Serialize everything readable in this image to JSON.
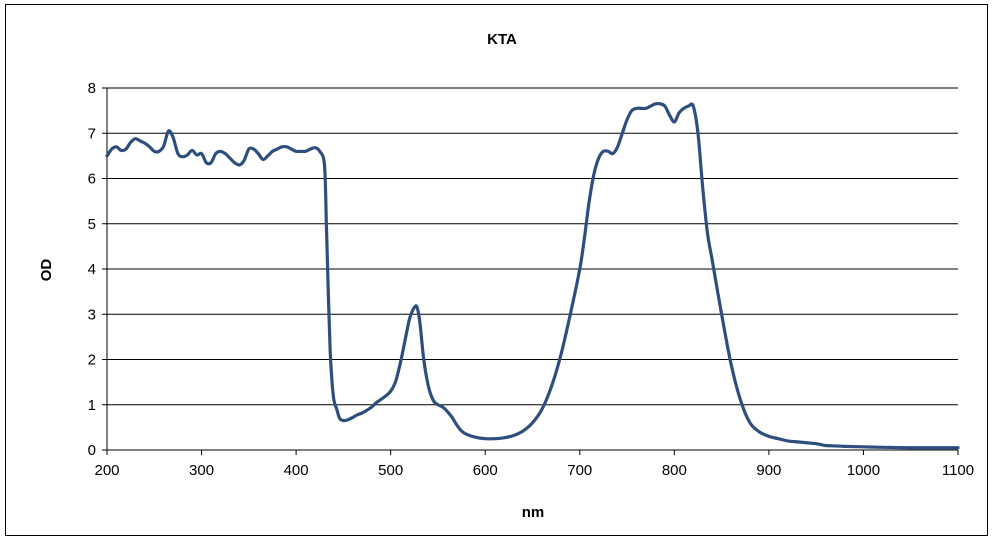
{
  "chart_data": {
    "type": "line",
    "title": "KTA",
    "xlabel": "nm",
    "ylabel": "OD",
    "xlim": [
      200,
      1100
    ],
    "ylim": [
      0,
      8
    ],
    "x_ticks": [
      "200",
      "300",
      "400",
      "500",
      "600",
      "700",
      "800",
      "900",
      "1000",
      "1100"
    ],
    "y_ticks": [
      "0",
      "1",
      "2",
      "3",
      "4",
      "5",
      "6",
      "7",
      "8"
    ],
    "grid": "horizontal",
    "legend": "none",
    "line_color": "#2e4f7e",
    "series": [
      {
        "x": [
          200,
          205,
          210,
          215,
          220,
          225,
          230,
          235,
          240,
          245,
          250,
          255,
          260,
          265,
          270,
          275,
          280,
          285,
          290,
          295,
          300,
          305,
          310,
          315,
          320,
          325,
          330,
          335,
          340,
          345,
          350,
          355,
          360,
          365,
          370,
          375,
          380,
          385,
          390,
          395,
          400,
          405,
          410,
          415,
          420,
          425,
          430,
          432,
          434,
          436,
          438,
          440,
          443,
          446,
          450,
          455,
          460,
          465,
          470,
          475,
          480,
          485,
          490,
          495,
          500,
          505,
          510,
          515,
          520,
          525,
          528,
          531,
          535,
          540,
          545,
          550,
          555,
          560,
          565,
          570,
          575,
          580,
          590,
          600,
          610,
          620,
          630,
          640,
          650,
          660,
          670,
          680,
          690,
          700,
          705,
          710,
          715,
          720,
          725,
          730,
          735,
          740,
          745,
          750,
          755,
          760,
          765,
          770,
          775,
          780,
          785,
          790,
          795,
          800,
          805,
          810,
          815,
          820,
          825,
          830,
          835,
          840,
          850,
          860,
          870,
          880,
          890,
          900,
          910,
          920,
          930,
          940,
          950,
          955,
          960,
          970,
          980,
          1000,
          1020,
          1050,
          1070,
          1100
        ],
        "y": [
          6.5,
          6.65,
          6.7,
          6.62,
          6.65,
          6.8,
          6.88,
          6.83,
          6.78,
          6.7,
          6.6,
          6.6,
          6.72,
          7.05,
          6.9,
          6.55,
          6.48,
          6.52,
          6.62,
          6.52,
          6.55,
          6.35,
          6.35,
          6.55,
          6.6,
          6.55,
          6.45,
          6.35,
          6.3,
          6.4,
          6.65,
          6.65,
          6.55,
          6.42,
          6.5,
          6.6,
          6.65,
          6.7,
          6.7,
          6.65,
          6.6,
          6.6,
          6.6,
          6.65,
          6.68,
          6.6,
          6.3,
          5.0,
          3.5,
          2.2,
          1.5,
          1.1,
          0.9,
          0.7,
          0.65,
          0.67,
          0.72,
          0.78,
          0.82,
          0.88,
          0.95,
          1.05,
          1.12,
          1.2,
          1.3,
          1.5,
          1.9,
          2.4,
          2.9,
          3.15,
          3.15,
          2.8,
          2.0,
          1.4,
          1.1,
          1.0,
          0.95,
          0.85,
          0.72,
          0.55,
          0.42,
          0.35,
          0.28,
          0.25,
          0.25,
          0.27,
          0.32,
          0.42,
          0.6,
          0.9,
          1.4,
          2.1,
          3.0,
          4.0,
          4.7,
          5.5,
          6.1,
          6.45,
          6.6,
          6.6,
          6.55,
          6.7,
          7.0,
          7.3,
          7.5,
          7.55,
          7.55,
          7.55,
          7.6,
          7.65,
          7.65,
          7.6,
          7.4,
          7.25,
          7.45,
          7.55,
          7.6,
          7.6,
          7.0,
          5.8,
          4.8,
          4.2,
          3.0,
          1.9,
          1.1,
          0.6,
          0.4,
          0.3,
          0.25,
          0.2,
          0.18,
          0.16,
          0.14,
          0.12,
          0.1,
          0.09,
          0.08,
          0.07,
          0.06,
          0.05,
          0.05,
          0.05
        ]
      }
    ]
  }
}
